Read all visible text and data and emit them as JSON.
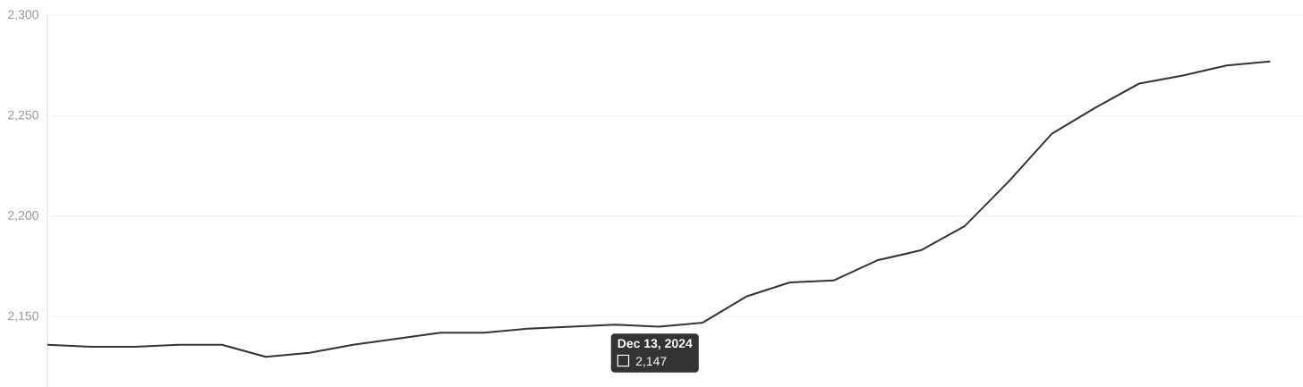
{
  "chart_data": {
    "type": "line",
    "color": "#333333",
    "categories": [
      null,
      null,
      null,
      null,
      null,
      null,
      null,
      null,
      null,
      null,
      null,
      null,
      null,
      null,
      null,
      null,
      null,
      null,
      null,
      null,
      null,
      null,
      null,
      null,
      null,
      null,
      null,
      null,
      null
    ],
    "values": [
      2136,
      2135,
      2135,
      2136,
      2136,
      2130,
      2132,
      2136,
      2139,
      2142,
      2142,
      2144,
      2145,
      2146,
      2145,
      2147,
      2160,
      2167,
      2168,
      2178,
      2183,
      2195,
      2217,
      2241,
      2254,
      2266,
      2270,
      2275,
      2277
    ],
    "ylim": [
      2115,
      2300
    ],
    "yticks": [
      {
        "value": 2150,
        "label": "2,150"
      },
      {
        "value": 2200,
        "label": "2,200"
      },
      {
        "value": 2250,
        "label": "2,250"
      },
      {
        "value": 2300,
        "label": "2,300"
      }
    ],
    "grid": true,
    "annotations": [
      {
        "text": "Dec 13, 2024",
        "y": 2147
      },
      {
        "text": "2,147",
        "y": 2147
      }
    ]
  }
}
